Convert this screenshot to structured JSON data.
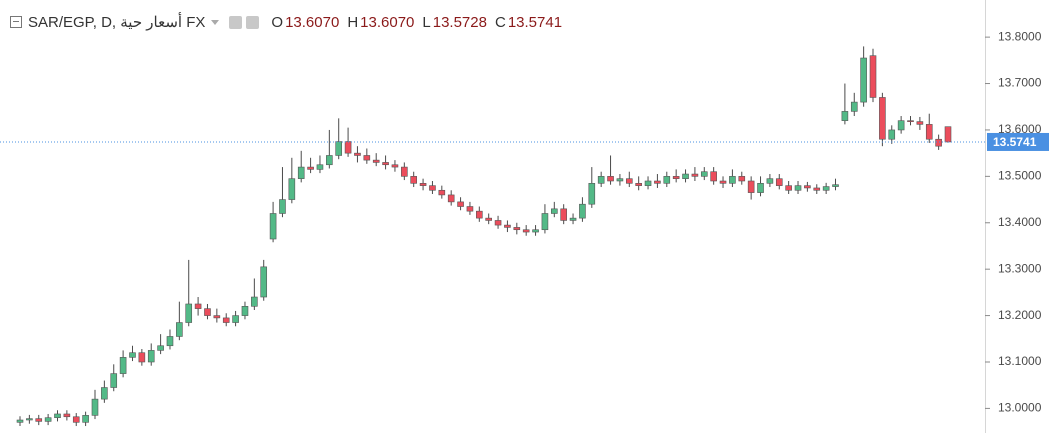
{
  "header": {
    "symbol": "SAR/EGP, D, أسعار حية FX",
    "ohlc": [
      {
        "key": "O",
        "value": "13.6070"
      },
      {
        "key": "H",
        "value": "13.6070"
      },
      {
        "key": "L",
        "value": "13.5728"
      },
      {
        "key": "C",
        "value": "13.5741"
      }
    ]
  },
  "chart_data": {
    "type": "candlestick",
    "up_color": "#53b987",
    "down_color": "#eb4d5c",
    "wick_color": "#4a4a4a",
    "last_price": 13.5741,
    "last_price_color": "#4a90e2",
    "ylim": [
      12.947,
      13.88
    ],
    "yticks": [
      {
        "value": 13.8,
        "label": "13.8000"
      },
      {
        "value": 13.7,
        "label": "13.7000"
      },
      {
        "value": 13.6,
        "label": "13.6000"
      },
      {
        "value": 13.5,
        "label": "13.5000"
      },
      {
        "value": 13.4,
        "label": "13.4000"
      },
      {
        "value": 13.3,
        "label": "13.3000"
      },
      {
        "value": 13.2,
        "label": "13.2000"
      },
      {
        "value": 13.1,
        "label": "13.1000"
      },
      {
        "value": 13.0,
        "label": "13.0000"
      }
    ],
    "grid": false,
    "open": [
      12.97,
      12.975,
      12.978,
      12.972,
      12.98,
      12.988,
      12.982,
      12.97,
      12.985,
      13.02,
      13.045,
      13.075,
      13.11,
      13.12,
      13.1,
      13.125,
      13.135,
      13.155,
      13.185,
      13.225,
      13.215,
      13.2,
      13.195,
      13.185,
      13.2,
      13.22,
      13.24,
      13.365,
      13.42,
      13.45,
      13.495,
      13.52,
      13.515,
      13.525,
      13.545,
      13.575,
      13.55,
      13.545,
      13.535,
      13.53,
      13.525,
      13.52,
      13.5,
      13.485,
      13.48,
      13.47,
      13.46,
      13.445,
      13.435,
      13.425,
      13.41,
      13.405,
      13.395,
      13.39,
      13.385,
      13.38,
      13.385,
      13.42,
      13.43,
      13.405,
      13.41,
      13.44,
      13.485,
      13.5,
      13.49,
      13.495,
      13.485,
      13.48,
      13.49,
      13.485,
      13.5,
      13.495,
      13.505,
      13.5,
      13.51,
      13.49,
      13.485,
      13.5,
      13.49,
      13.465,
      13.485,
      13.495,
      13.48,
      13.47,
      13.48,
      13.475,
      13.47,
      13.478,
      13.62,
      13.64,
      13.66,
      13.76,
      13.67,
      13.58,
      13.6,
      13.62,
      13.618,
      13.612,
      13.58,
      13.607
    ],
    "high": [
      12.983,
      12.986,
      12.986,
      12.988,
      12.996,
      12.996,
      12.99,
      12.993,
      13.04,
      13.06,
      13.095,
      13.125,
      13.135,
      13.128,
      13.14,
      13.16,
      13.17,
      13.23,
      13.32,
      13.24,
      13.225,
      13.215,
      13.205,
      13.21,
      13.23,
      13.28,
      13.32,
      13.445,
      13.52,
      13.54,
      13.555,
      13.54,
      13.545,
      13.6,
      13.625,
      13.605,
      13.565,
      13.56,
      13.55,
      13.545,
      13.535,
      13.53,
      13.51,
      13.495,
      13.49,
      13.48,
      13.47,
      13.455,
      13.445,
      13.435,
      13.42,
      13.415,
      13.405,
      13.4,
      13.395,
      13.395,
      13.44,
      13.445,
      13.44,
      13.42,
      13.455,
      13.52,
      13.51,
      13.545,
      13.505,
      13.51,
      13.5,
      13.5,
      13.505,
      13.51,
      13.515,
      13.515,
      13.52,
      13.52,
      13.52,
      13.5,
      13.515,
      13.51,
      13.5,
      13.5,
      13.505,
      13.505,
      13.49,
      13.49,
      13.488,
      13.483,
      13.486,
      13.495,
      13.7,
      13.68,
      13.78,
      13.775,
      13.68,
      13.61,
      13.63,
      13.63,
      13.628,
      13.635,
      13.59,
      13.607
    ],
    "low": [
      12.962,
      12.967,
      12.964,
      12.964,
      12.972,
      12.974,
      12.962,
      12.962,
      12.977,
      13.012,
      13.037,
      13.067,
      13.102,
      13.092,
      13.092,
      13.117,
      13.127,
      13.147,
      13.177,
      13.2,
      13.192,
      13.185,
      13.177,
      13.177,
      13.192,
      13.212,
      13.232,
      13.358,
      13.412,
      13.442,
      13.487,
      13.507,
      13.507,
      13.517,
      13.537,
      13.542,
      13.53,
      13.527,
      13.522,
      13.515,
      13.51,
      13.492,
      13.477,
      13.47,
      13.462,
      13.452,
      13.437,
      13.427,
      13.417,
      13.402,
      13.397,
      13.387,
      13.38,
      13.375,
      13.372,
      13.372,
      13.377,
      13.412,
      13.397,
      13.397,
      13.402,
      13.432,
      13.477,
      13.482,
      13.48,
      13.477,
      13.47,
      13.472,
      13.475,
      13.477,
      13.487,
      13.487,
      13.49,
      13.492,
      13.482,
      13.475,
      13.477,
      13.482,
      13.45,
      13.457,
      13.477,
      13.472,
      13.462,
      13.462,
      13.467,
      13.462,
      13.462,
      13.47,
      13.612,
      13.63,
      13.65,
      13.66,
      13.565,
      13.57,
      13.592,
      13.61,
      13.6,
      13.572,
      13.557,
      13.5728
    ],
    "close": [
      12.975,
      12.978,
      12.972,
      12.98,
      12.988,
      12.982,
      12.97,
      12.985,
      13.02,
      13.045,
      13.075,
      13.11,
      13.12,
      13.1,
      13.125,
      13.135,
      13.155,
      13.185,
      13.225,
      13.215,
      13.2,
      13.195,
      13.185,
      13.2,
      13.22,
      13.24,
      13.305,
      13.42,
      13.45,
      13.495,
      13.52,
      13.515,
      13.525,
      13.545,
      13.575,
      13.55,
      13.545,
      13.535,
      13.53,
      13.525,
      13.52,
      13.5,
      13.485,
      13.48,
      13.47,
      13.46,
      13.445,
      13.435,
      13.425,
      13.41,
      13.405,
      13.395,
      13.39,
      13.385,
      13.38,
      13.385,
      13.42,
      13.43,
      13.405,
      13.41,
      13.44,
      13.485,
      13.5,
      13.49,
      13.495,
      13.485,
      13.48,
      13.49,
      13.485,
      13.5,
      13.495,
      13.505,
      13.5,
      13.51,
      13.49,
      13.485,
      13.5,
      13.49,
      13.465,
      13.485,
      13.495,
      13.48,
      13.47,
      13.48,
      13.475,
      13.47,
      13.478,
      13.482,
      13.64,
      13.66,
      13.755,
      13.67,
      13.58,
      13.6,
      13.62,
      13.618,
      13.612,
      13.58,
      13.565,
      13.5741
    ]
  }
}
